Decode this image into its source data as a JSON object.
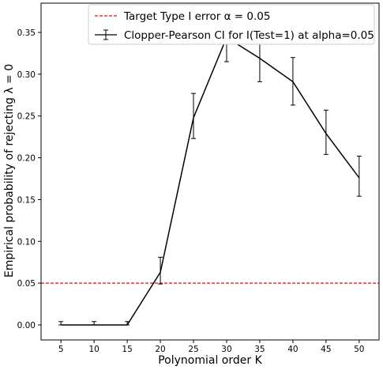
{
  "chart_data": {
    "type": "line",
    "xlabel": "Polynomial order K",
    "ylabel": "Empirical probability of rejecting λ = 0",
    "x": [
      5,
      10,
      15,
      20,
      25,
      30,
      35,
      40,
      45,
      50
    ],
    "xlim": [
      2,
      53
    ],
    "ylim": [
      -0.018,
      0.385
    ],
    "xticks": [
      5,
      10,
      15,
      20,
      25,
      30,
      35,
      40,
      45,
      50
    ],
    "yticks": [
      "0.00",
      "0.05",
      "0.10",
      "0.15",
      "0.20",
      "0.25",
      "0.30",
      "0.35"
    ],
    "series": [
      {
        "name": "Clopper-Pearson CI for I(Test=1) at alpha=0.05",
        "color": "#000000",
        "values": [
          0.0,
          0.0,
          0.0,
          0.063,
          0.248,
          0.344,
          0.319,
          0.291,
          0.229,
          0.176
        ],
        "lower": [
          0.0,
          0.0,
          0.0,
          0.049,
          0.223,
          0.315,
          0.291,
          0.263,
          0.204,
          0.154
        ],
        "upper": [
          0.004,
          0.004,
          0.004,
          0.081,
          0.277,
          0.373,
          0.348,
          0.32,
          0.257,
          0.202
        ]
      }
    ],
    "reference_line": {
      "name": "Target Type I error α = 0.05",
      "y": 0.05,
      "color": "#ff0000",
      "style": "dashed"
    },
    "legend": {
      "placement": "top-right",
      "entries": [
        "Target Type I error α = 0.05",
        "Clopper-Pearson CI for I(Test=1) at alpha=0.05"
      ]
    },
    "grid": false
  }
}
